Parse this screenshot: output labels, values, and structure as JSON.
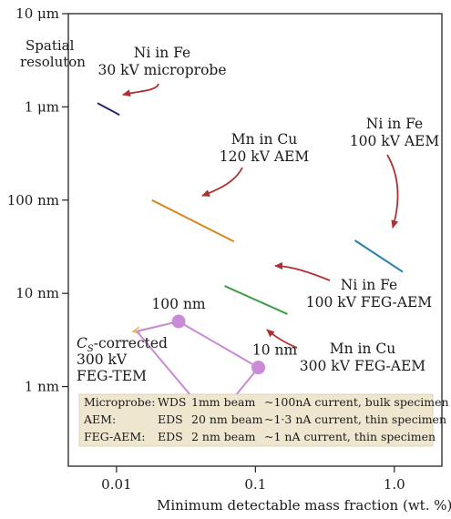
{
  "chart_data": {
    "type": "line",
    "xlabel": "Minimum detectable mass fraction (wt. %)",
    "ylabel": [
      "Spatial",
      "resoluton"
    ],
    "x_scale": "log",
    "y_scale": "log",
    "xlim": [
      0.0045,
      2.2
    ],
    "ylim_nm": [
      0.14,
      10000
    ],
    "x_ticks": [
      {
        "value": 0.01,
        "label": "0.01"
      },
      {
        "value": 0.1,
        "label": "0.1"
      },
      {
        "value": 1.0,
        "label": "1.0"
      }
    ],
    "y_ticks": [
      {
        "value": 10000,
        "label": "10 μm"
      },
      {
        "value": 1000,
        "label": "1 μm"
      },
      {
        "value": 100,
        "label": "100 nm"
      },
      {
        "value": 10,
        "label": "10 nm"
      },
      {
        "value": 1,
        "label": "1 nm"
      }
    ],
    "grid": false,
    "series": [
      {
        "name": "Ni in Fe 30 kV microprobe",
        "color": "#1f2a6b",
        "points": [
          [
            0.0073,
            1100
          ],
          [
            0.0105,
            820
          ]
        ]
      },
      {
        "name": "Mn in Cu 120 kV AEM",
        "color": "#d48a1f",
        "points": [
          [
            0.018,
            100
          ],
          [
            0.07,
            36
          ]
        ]
      },
      {
        "name": "Ni in Fe 100 kV AEM",
        "color": "#2a7fa8",
        "points": [
          [
            0.52,
            37
          ],
          [
            1.15,
            17
          ]
        ]
      },
      {
        "name": "Ni in Fe 100 kV FEG-AEM",
        "color": "#3b9e44",
        "points": [
          [
            0.06,
            12
          ],
          [
            0.17,
            6
          ]
        ]
      },
      {
        "name": "Cs-corrected 300 kV FEG-TEM",
        "color": "#c98ad6",
        "points": [
          [
            0.014,
            3.9
          ],
          [
            0.028,
            5
          ],
          [
            0.105,
            1.6
          ],
          [
            0.05,
            0.41
          ],
          [
            0.014,
            3.9
          ]
        ]
      }
    ],
    "markers": [
      {
        "label": "100 nm",
        "x": 0.028,
        "y": 5,
        "color": "#c98ad6"
      },
      {
        "label": "10 nm",
        "x": 0.105,
        "y": 1.6,
        "color": "#c98ad6"
      }
    ],
    "projections": [
      {
        "from": [
          0.028,
          5
        ],
        "to": [
          0.0133,
          3.9
        ],
        "color": "#e8b55a"
      },
      {
        "from": [
          0.105,
          1.6
        ],
        "to": [
          0.05,
          0.41
        ],
        "color": "#e8b55a"
      }
    ],
    "annotations": [
      {
        "lines": [
          "Ni in Fe",
          "30 kV microprobe"
        ],
        "arrow_color": "#b03030"
      },
      {
        "lines": [
          "Mn in Cu",
          "120 kV AEM"
        ],
        "arrow_color": "#b03030"
      },
      {
        "lines": [
          "Ni in Fe",
          "100 kV AEM"
        ],
        "arrow_color": "#b03030"
      },
      {
        "lines": [
          "Ni in Fe",
          "100 kV FEG-AEM"
        ],
        "arrow_color": "#b03030"
      },
      {
        "lines": [
          "Mn in Cu",
          "300 kV FEG-AEM"
        ],
        "arrow_color": "#b03030"
      }
    ],
    "cs_label": {
      "prefix": "C",
      "subscript": "S",
      "suffix": "-corrected",
      "line2": "300 kV",
      "line3": "FEG-TEM"
    },
    "legend_box": {
      "background": "#efe6cf",
      "rows": [
        {
          "name": "Microprobe:",
          "detector": "WDS",
          "beam": "1mm beam",
          "desc": "~100nA current, bulk specimen"
        },
        {
          "name": "AEM:",
          "detector": "EDS",
          "beam": "20 nm beam",
          "desc": "~1·3 nA current, thin specimen"
        },
        {
          "name": "FEG-AEM:",
          "detector": "EDS",
          "beam": "2 nm beam",
          "desc": "~1 nA current, thin specimen"
        }
      ]
    }
  }
}
